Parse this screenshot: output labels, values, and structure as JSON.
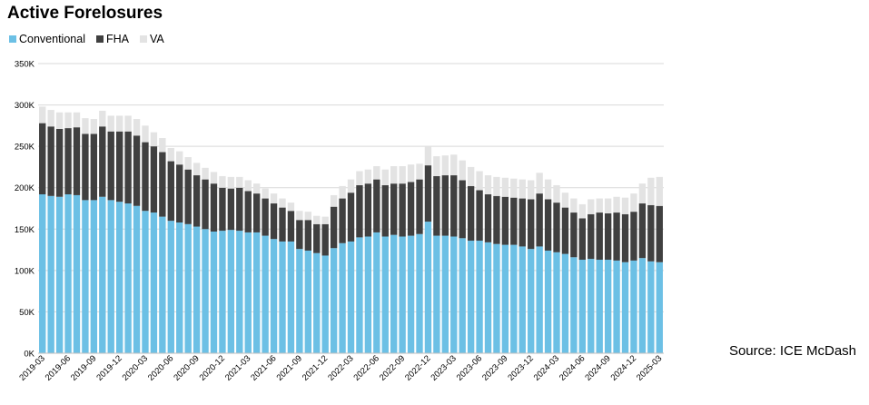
{
  "chart_data": {
    "type": "bar",
    "stacked": true,
    "title": "Active Forelosures",
    "source": "Source: ICE McDash",
    "ylim": [
      0,
      350000
    ],
    "yticks": [
      0,
      50000,
      100000,
      150000,
      200000,
      250000,
      300000,
      350000
    ],
    "ytick_labels": [
      "0K",
      "50K",
      "100K",
      "150K",
      "200K",
      "250K",
      "300K",
      "350K"
    ],
    "grid": true,
    "legend_position": "top-left",
    "categories": [
      "2019-03",
      "2019-04",
      "2019-05",
      "2019-06",
      "2019-07",
      "2019-08",
      "2019-09",
      "2019-10",
      "2019-11",
      "2019-12",
      "2020-01",
      "2020-02",
      "2020-03",
      "2020-04",
      "2020-05",
      "2020-06",
      "2020-07",
      "2020-08",
      "2020-09",
      "2020-10",
      "2020-11",
      "2020-12",
      "2021-01",
      "2021-02",
      "2021-03",
      "2021-04",
      "2021-05",
      "2021-06",
      "2021-07",
      "2021-08",
      "2021-09",
      "2021-10",
      "2021-11",
      "2021-12",
      "2022-01",
      "2022-02",
      "2022-03",
      "2022-04",
      "2022-05",
      "2022-06",
      "2022-07",
      "2022-08",
      "2022-09",
      "2022-10",
      "2022-11",
      "2022-12",
      "2023-01",
      "2023-02",
      "2023-03",
      "2023-04",
      "2023-05",
      "2023-06",
      "2023-07",
      "2023-08",
      "2023-09",
      "2023-10",
      "2023-11",
      "2023-12",
      "2024-01",
      "2024-02",
      "2024-03",
      "2024-04",
      "2024-05",
      "2024-06",
      "2024-07",
      "2024-08",
      "2024-09",
      "2024-10",
      "2024-11",
      "2024-12",
      "2025-01",
      "2025-02",
      "2025-03"
    ],
    "xtick_labels": [
      "2019-03",
      "2019-06",
      "2019-09",
      "2019-12",
      "2020-03",
      "2020-06",
      "2020-09",
      "2020-12",
      "2021-03",
      "2021-06",
      "2021-09",
      "2021-12",
      "2022-03",
      "2022-06",
      "2022-09",
      "2022-12",
      "2023-03",
      "2023-06",
      "2023-09",
      "2023-12",
      "2024-03",
      "2024-06",
      "2024-09",
      "2024-12",
      "2025-03"
    ],
    "series": [
      {
        "name": "Conventional",
        "color": "#6cc0e5",
        "values": [
          192000,
          190000,
          189000,
          192000,
          191000,
          185000,
          185000,
          189000,
          185000,
          183000,
          181000,
          178000,
          172000,
          170000,
          165000,
          160000,
          158000,
          156000,
          153000,
          150000,
          147000,
          148000,
          149000,
          148000,
          146000,
          146000,
          142000,
          138000,
          135000,
          135000,
          126000,
          124000,
          121000,
          118000,
          127000,
          133000,
          135000,
          140000,
          141000,
          146000,
          141000,
          143000,
          141000,
          142000,
          144000,
          159000,
          142000,
          142000,
          141000,
          139000,
          136000,
          136000,
          134000,
          132000,
          131000,
          131000,
          129000,
          126000,
          129000,
          124000,
          122000,
          120000,
          116000,
          113000,
          114000,
          113000,
          113000,
          112000,
          110000,
          112000,
          115000,
          111000,
          110000
        ]
      },
      {
        "name": "FHA",
        "color": "#404040",
        "values": [
          86000,
          84000,
          82000,
          80000,
          82000,
          80000,
          80000,
          85000,
          83000,
          85000,
          87000,
          85000,
          83000,
          80000,
          78000,
          72000,
          70000,
          66000,
          62000,
          60000,
          58000,
          52000,
          50000,
          52000,
          50000,
          47000,
          45000,
          43000,
          41000,
          37000,
          35000,
          37000,
          35000,
          38000,
          50000,
          54000,
          59000,
          63000,
          64000,
          64000,
          62000,
          62000,
          64000,
          65000,
          66000,
          68000,
          72000,
          73000,
          74000,
          70000,
          66000,
          61000,
          58000,
          58000,
          58000,
          57000,
          58000,
          60000,
          64000,
          62000,
          60000,
          56000,
          54000,
          50000,
          54000,
          57000,
          56000,
          58000,
          58000,
          59000,
          66000,
          68000,
          68000
        ]
      },
      {
        "name": "VA",
        "color": "#e3e3e3",
        "values": [
          20000,
          20000,
          20000,
          19000,
          18000,
          19000,
          18000,
          19000,
          19000,
          19000,
          19000,
          20000,
          20000,
          17000,
          17000,
          16000,
          16000,
          15000,
          15000,
          14000,
          14000,
          14000,
          14000,
          13000,
          13000,
          12000,
          12000,
          12000,
          11000,
          10000,
          11000,
          10000,
          10000,
          9000,
          14000,
          15000,
          16000,
          17000,
          17000,
          16000,
          19000,
          21000,
          21000,
          21000,
          19000,
          23000,
          24000,
          24000,
          25000,
          24000,
          23000,
          23000,
          23000,
          23000,
          23000,
          23000,
          23000,
          23000,
          25000,
          24000,
          21000,
          18000,
          17000,
          17000,
          18000,
          17000,
          18000,
          19000,
          20000,
          22000,
          24000,
          33000,
          35000
        ]
      }
    ]
  }
}
